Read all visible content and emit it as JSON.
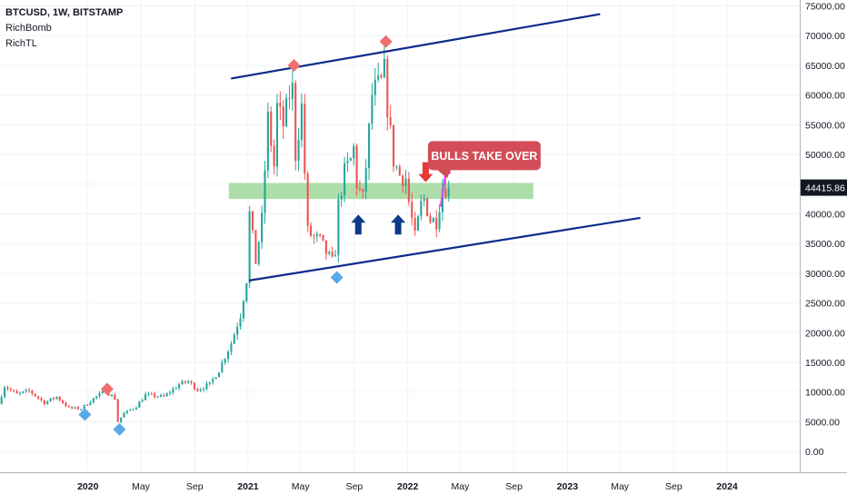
{
  "header": {
    "symbol": "BTCUSD, 1W, BITSTAMP",
    "indicators": [
      "RichBomb",
      "RichTL"
    ]
  },
  "colors": {
    "up": "#26a69a",
    "down": "#ef5350",
    "trendline": "#0d2a8a",
    "zone": "#9fd89a",
    "price_tag": "#131722",
    "callout": "#d24d57",
    "magenta": "#e040fb",
    "diamond_red": "#ef6f6f",
    "diamond_blue": "#5aa9e6",
    "arrow_blue": "#0d3a8a",
    "arrow_red": "#e53935"
  },
  "chart_data": {
    "type": "candlestick",
    "symbol": "BTCUSD",
    "timeframe": "1W",
    "exchange": "BITSTAMP",
    "ylim": [
      -3500,
      76000
    ],
    "xlim": [
      "2019-06-14",
      "2024-06-15"
    ],
    "y_ticks": [
      "75000.00",
      "70000.00",
      "65000.00",
      "60000.00",
      "55000.00",
      "50000.00",
      "45000.00",
      "40000.00",
      "35000.00",
      "30000.00",
      "25000.00",
      "20000.00",
      "15000.00",
      "10000.00",
      "5000.00",
      "0.00"
    ],
    "x_ticks": [
      {
        "label": "2020",
        "date": "2020-01-01",
        "bold": true
      },
      {
        "label": "May",
        "date": "2020-05-01",
        "bold": false
      },
      {
        "label": "Sep",
        "date": "2020-09-01",
        "bold": false
      },
      {
        "label": "2021",
        "date": "2021-01-01",
        "bold": true
      },
      {
        "label": "May",
        "date": "2021-05-01",
        "bold": false
      },
      {
        "label": "Sep",
        "date": "2021-09-01",
        "bold": false
      },
      {
        "label": "2022",
        "date": "2022-01-01",
        "bold": true
      },
      {
        "label": "May",
        "date": "2022-05-01",
        "bold": false
      },
      {
        "label": "Sep",
        "date": "2022-09-01",
        "bold": false
      },
      {
        "label": "2023",
        "date": "2023-01-01",
        "bold": true
      },
      {
        "label": "May",
        "date": "2023-05-01",
        "bold": false
      },
      {
        "label": "Sep",
        "date": "2023-09-01",
        "bold": false
      },
      {
        "label": "2024",
        "date": "2024-01-01",
        "bold": true
      }
    ],
    "current_price": 44415.86,
    "current_price_label": "44415.86",
    "price_path": [
      [
        "2019-06-14",
        8000
      ],
      [
        "2019-06-28",
        11000
      ],
      [
        "2019-07-26",
        9600
      ],
      [
        "2019-08-23",
        10200
      ],
      [
        "2019-09-27",
        8200
      ],
      [
        "2019-10-25",
        9200
      ],
      [
        "2019-11-22",
        7300
      ],
      [
        "2019-12-20",
        7200
      ],
      [
        "2020-01-17",
        8900
      ],
      [
        "2020-02-14",
        10200
      ],
      [
        "2020-03-06",
        8900
      ],
      [
        "2020-03-13",
        5000
      ],
      [
        "2020-03-27",
        6400
      ],
      [
        "2020-04-24",
        7600
      ],
      [
        "2020-05-15",
        9500
      ],
      [
        "2020-06-26",
        9200
      ],
      [
        "2020-07-31",
        11300
      ],
      [
        "2020-08-21",
        11800
      ],
      [
        "2020-09-11",
        10400
      ],
      [
        "2020-10-09",
        11300
      ],
      [
        "2020-10-30",
        13700
      ],
      [
        "2020-11-13",
        16000
      ],
      [
        "2020-11-27",
        18200
      ],
      [
        "2020-12-18",
        23000
      ],
      [
        "2021-01-01",
        29000
      ],
      [
        "2021-01-08",
        40000
      ],
      [
        "2021-01-22",
        32000
      ],
      [
        "2021-02-05",
        39000
      ],
      [
        "2021-02-19",
        56000
      ],
      [
        "2021-03-05",
        48000
      ],
      [
        "2021-03-12",
        58000
      ],
      [
        "2021-03-26",
        55000
      ],
      [
        "2021-04-09",
        60000
      ],
      [
        "2021-04-16",
        61000
      ],
      [
        "2021-04-23",
        50000
      ],
      [
        "2021-05-07",
        58000
      ],
      [
        "2021-05-14",
        47000
      ],
      [
        "2021-05-21",
        37000
      ],
      [
        "2021-06-04",
        36000
      ],
      [
        "2021-06-18",
        35500
      ],
      [
        "2021-07-02",
        33500
      ],
      [
        "2021-07-16",
        31800
      ],
      [
        "2021-07-23",
        34000
      ],
      [
        "2021-07-30",
        41500
      ],
      [
        "2021-08-13",
        47000
      ],
      [
        "2021-08-27",
        49000
      ],
      [
        "2021-09-03",
        51000
      ],
      [
        "2021-09-10",
        45000
      ],
      [
        "2021-09-24",
        42500
      ],
      [
        "2021-10-01",
        48000
      ],
      [
        "2021-10-15",
        60000
      ],
      [
        "2021-10-22",
        61000
      ],
      [
        "2021-11-05",
        62000
      ],
      [
        "2021-11-12",
        64000
      ],
      [
        "2021-11-19",
        58000
      ],
      [
        "2021-12-03",
        49000
      ],
      [
        "2021-12-17",
        46500
      ],
      [
        "2021-12-31",
        46000
      ],
      [
        "2022-01-07",
        42000
      ],
      [
        "2022-01-21",
        36000
      ],
      [
        "2022-02-04",
        41500
      ],
      [
        "2022-02-11",
        42500
      ],
      [
        "2022-02-25",
        39000
      ],
      [
        "2022-03-11",
        38800
      ],
      [
        "2022-03-25",
        44500
      ],
      [
        "2022-04-01",
        44415.86
      ]
    ],
    "trendlines": [
      {
        "name": "upper-channel",
        "from": [
          "2020-11-25",
          62800
        ],
        "to": [
          "2023-03-15",
          73600
        ]
      },
      {
        "name": "lower-channel",
        "from": [
          "2021-01-05",
          28800
        ],
        "to": [
          "2023-06-15",
          39300
        ]
      }
    ],
    "zones": [
      {
        "name": "support-resistance-zone",
        "x0": "2020-11-18",
        "x1": "2022-10-15",
        "y0": 42500,
        "y1": 45200
      }
    ],
    "diamonds": [
      {
        "kind": "top",
        "date": "2020-02-14",
        "price": 10500
      },
      {
        "kind": "bottom",
        "date": "2019-12-25",
        "price": 6200
      },
      {
        "kind": "bottom",
        "date": "2020-03-13",
        "price": 3700
      },
      {
        "kind": "top",
        "date": "2021-04-16",
        "price": 65000
      },
      {
        "kind": "top",
        "date": "2021-11-12",
        "price": 69000
      },
      {
        "kind": "bottom",
        "date": "2021-07-23",
        "price": 29300
      }
    ],
    "arrows": [
      {
        "kind": "up",
        "date": "2021-09-10",
        "price": 38200
      },
      {
        "kind": "up",
        "date": "2021-12-10",
        "price": 38200
      },
      {
        "kind": "down",
        "date": "2022-02-11",
        "price": 47000
      }
    ],
    "annotations": [
      {
        "text": "BULLS TAKE OVER",
        "date": "2022-06-25",
        "price": 49800,
        "pointer": [
          "2022-04-01",
          46000
        ]
      }
    ],
    "magenta_arrow": {
      "from": [
        "2022-03-17",
        41200
      ],
      "to": [
        "2022-03-31",
        48000
      ]
    }
  }
}
